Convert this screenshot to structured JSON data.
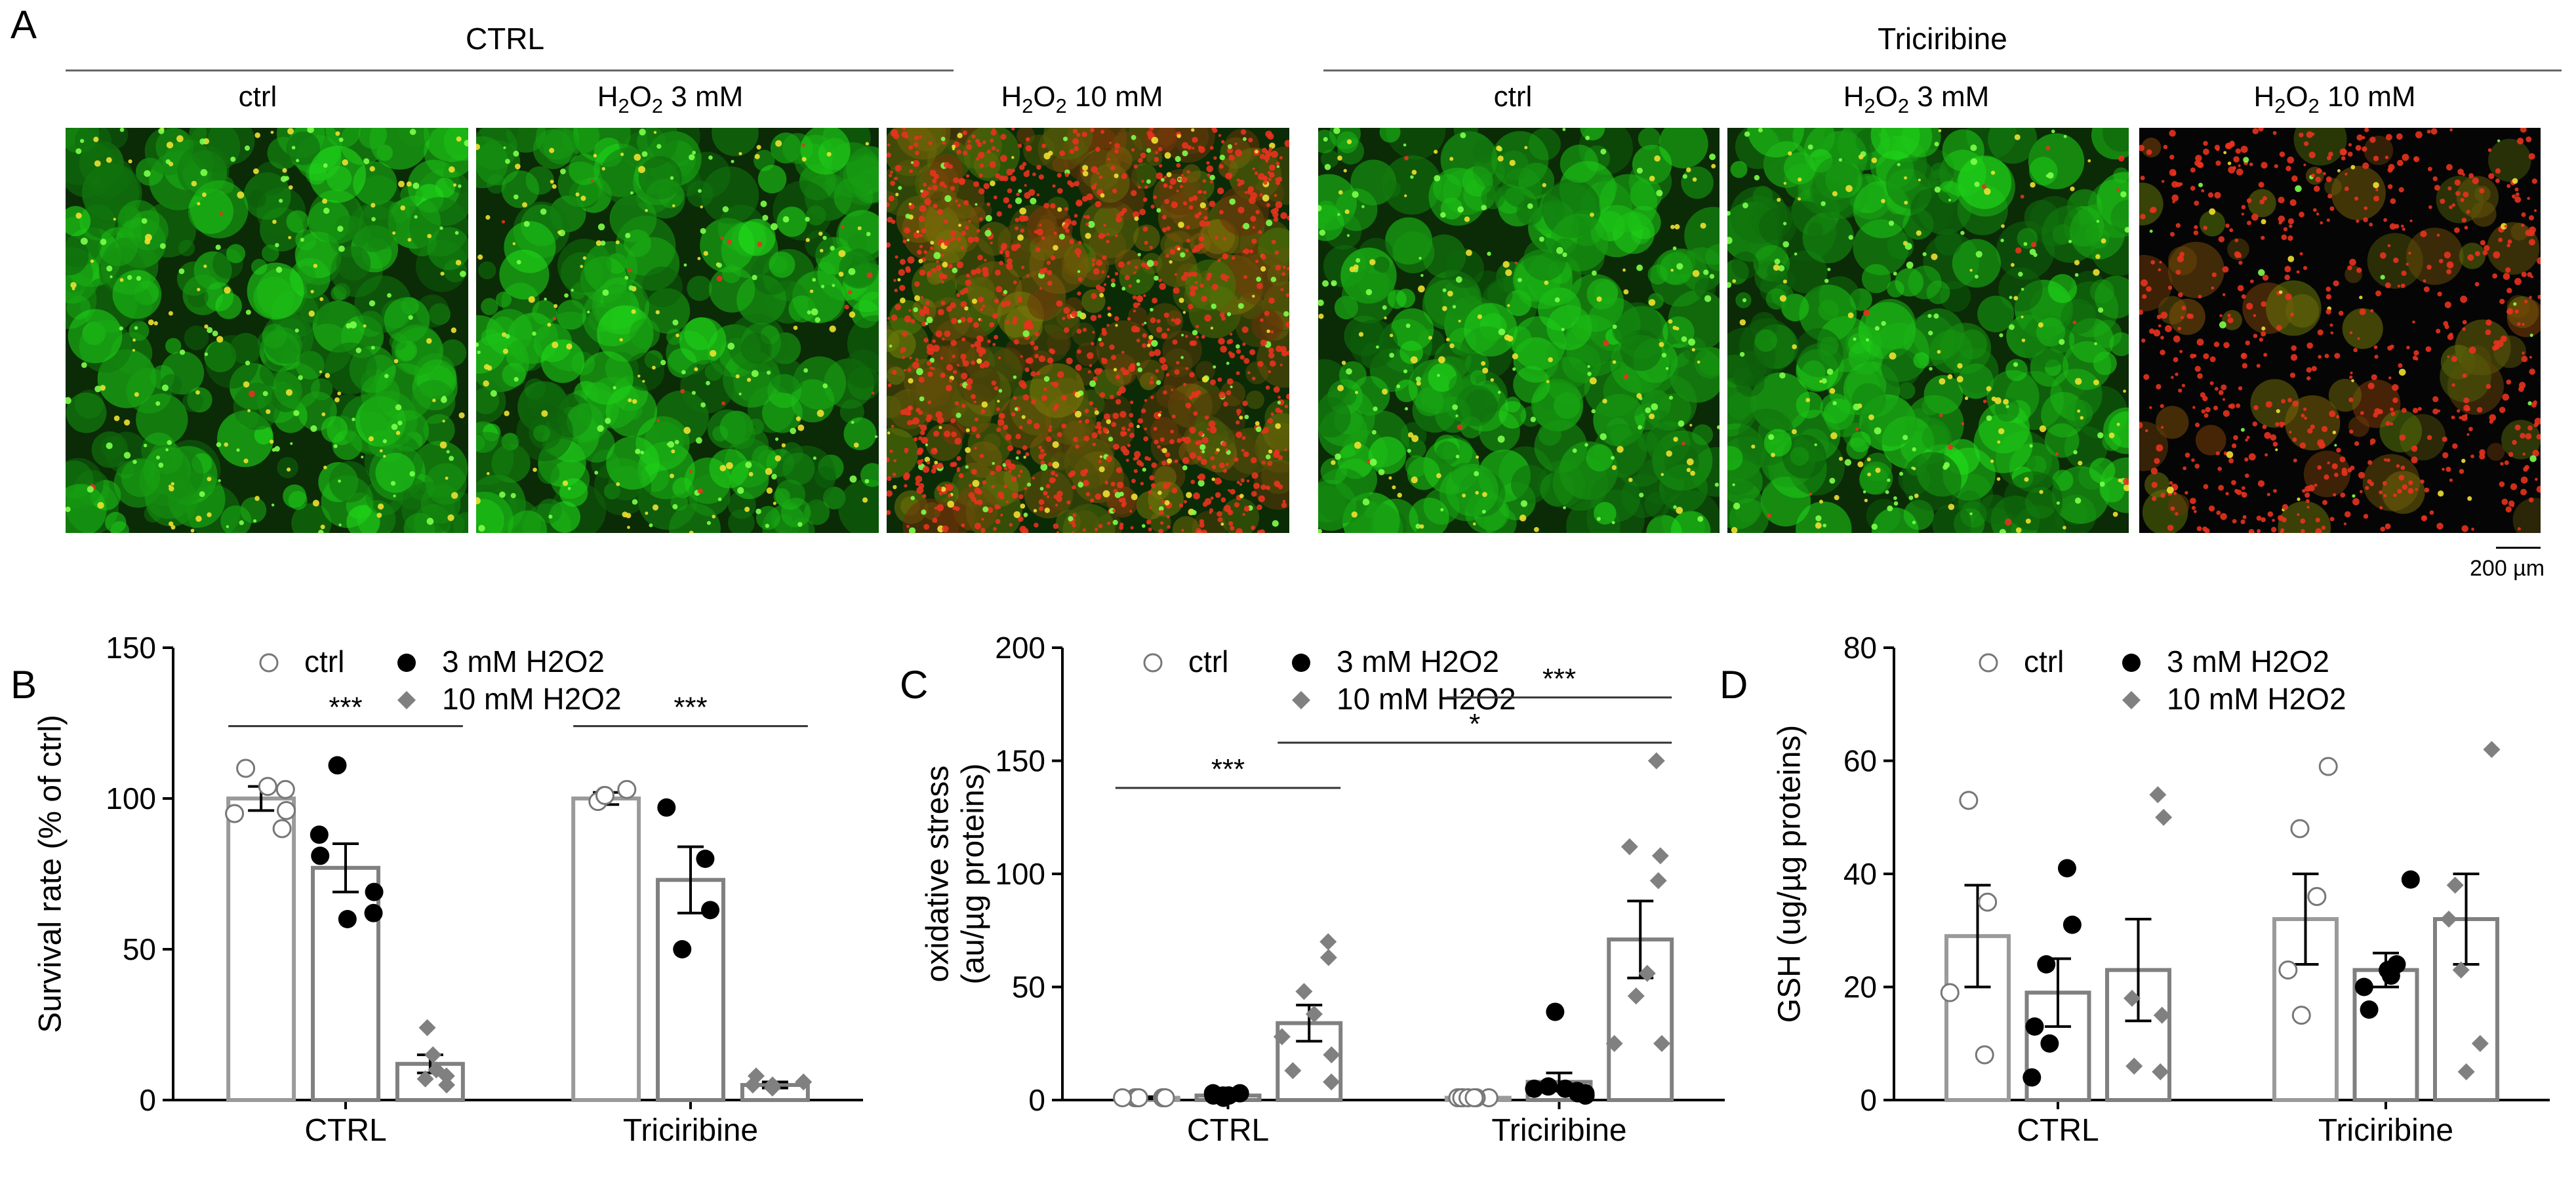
{
  "panel_a": {
    "letter": "A",
    "groups": [
      {
        "title": "CTRL",
        "columns": [
          "ctrl",
          "H2O2 3 mM",
          "H2O2 10 mM"
        ]
      },
      {
        "title": "Triciribine",
        "columns": [
          "ctrl",
          "H2O2 3 mM",
          "H2O2 10 mM"
        ]
      }
    ],
    "scale_bar": "200 µm",
    "image_descriptions": [
      {
        "label": "ctrl",
        "red_fraction": 0.03
      },
      {
        "label": "H2O2 3 mM",
        "red_fraction": 0.1
      },
      {
        "label": "H2O2 10 mM",
        "red_fraction": 0.85
      },
      {
        "label": "ctrl",
        "red_fraction": 0.03
      },
      {
        "label": "H2O2 3 mM",
        "red_fraction": 0.08
      },
      {
        "label": "H2O2 10 mM",
        "red_fraction": 0.95
      }
    ]
  },
  "colors": {
    "ctrl": "#ffffff",
    "h2o2_3mM": "#000000",
    "h2o2_10mM": "#808080",
    "bar_edge": "#000000",
    "bar_edge_grey": "#808080",
    "live_stain": "#2fbf2f",
    "dead_stain": "#e8321e"
  },
  "chart_data": [
    {
      "letter": "B",
      "type": "bar",
      "ylabel": "Survival rate (% of ctrl)",
      "xlabel": "",
      "ylim": [
        0,
        150
      ],
      "yticks": [
        0,
        50,
        100,
        150
      ],
      "categories": [
        "CTRL",
        "Triciribine"
      ],
      "legend": [
        "ctrl",
        "3 mM H2O2",
        "10 mM H2O2"
      ],
      "series": [
        {
          "name": "ctrl",
          "values": [
            100,
            100
          ],
          "sem": [
            4,
            2
          ],
          "points": [
            [
              110,
              103,
              104,
              96,
              95,
              90
            ],
            [
              101,
              103,
              99,
              101
            ]
          ]
        },
        {
          "name": "3 mM H2O2",
          "values": [
            77,
            73
          ],
          "sem": [
            8,
            11
          ],
          "points": [
            [
              111,
              88,
              81,
              69,
              62,
              60
            ],
            [
              97,
              80,
              63,
              50
            ]
          ]
        },
        {
          "name": "10 mM H2O2",
          "values": [
            12,
            5
          ],
          "sem": [
            3,
            1
          ],
          "points": [
            [
              24,
              15,
              10,
              8,
              5,
              7
            ],
            [
              8,
              6,
              5,
              4,
              5
            ]
          ]
        }
      ],
      "annotations": [
        {
          "text": "***",
          "from": [
            "CTRL",
            "ctrl"
          ],
          "to": [
            "CTRL",
            "10 mM H2O2"
          ],
          "y": 124
        },
        {
          "text": "***",
          "from": [
            "Triciribine",
            "ctrl"
          ],
          "to": [
            "Triciribine",
            "10 mM H2O2"
          ],
          "y": 124
        }
      ]
    },
    {
      "letter": "C",
      "type": "bar",
      "ylabel": "oxidative stress\n(au/µg proteins)",
      "xlabel": "",
      "ylim": [
        0,
        200
      ],
      "yticks": [
        0,
        50,
        100,
        150,
        200
      ],
      "categories": [
        "CTRL",
        "Triciribine"
      ],
      "legend": [
        "ctrl",
        "3 mM H2O2",
        "10 mM H2O2"
      ],
      "series": [
        {
          "name": "ctrl",
          "values": [
            1,
            1
          ],
          "sem": [
            0.5,
            0.5
          ],
          "points": [
            [
              1,
              1,
              1,
              1,
              1,
              1,
              1,
              1
            ],
            [
              1,
              1,
              1,
              1,
              1,
              1,
              1,
              1
            ]
          ]
        },
        {
          "name": "3 mM H2O2",
          "values": [
            2,
            8
          ],
          "sem": [
            1,
            4
          ],
          "points": [
            [
              3,
              2,
              2,
              2,
              1,
              3,
              2
            ],
            [
              39,
              6,
              5,
              3,
              2,
              4,
              5,
              3
            ]
          ]
        },
        {
          "name": "10 mM H2O2",
          "values": [
            34,
            71
          ],
          "sem": [
            8,
            17
          ],
          "points": [
            [
              70,
              63,
              48,
              38,
              28,
              20,
              13,
              8
            ],
            [
              150,
              112,
              108,
              97,
              56,
              46,
              25,
              25
            ]
          ]
        }
      ],
      "annotations": [
        {
          "text": "***",
          "from": [
            "CTRL",
            "ctrl"
          ],
          "to": [
            "CTRL",
            "10 mM H2O2"
          ],
          "y": 138
        },
        {
          "text": "*",
          "from": [
            "CTRL",
            "10 mM H2O2"
          ],
          "to": [
            "Triciribine",
            "10 mM H2O2"
          ],
          "y": 158
        },
        {
          "text": "***",
          "from": [
            "Triciribine",
            "ctrl"
          ],
          "to": [
            "Triciribine",
            "10 mM H2O2"
          ],
          "y": 178
        }
      ]
    },
    {
      "letter": "D",
      "type": "bar",
      "ylabel": "GSH (ug/µg proteins)",
      "xlabel": "",
      "ylim": [
        0,
        80
      ],
      "yticks": [
        0,
        20,
        40,
        60,
        80
      ],
      "categories": [
        "CTRL",
        "Triciribine"
      ],
      "legend": [
        "ctrl",
        "3 mM H2O2",
        "10 mM H2O2"
      ],
      "series": [
        {
          "name": "ctrl",
          "values": [
            29,
            32
          ],
          "sem": [
            9,
            8
          ],
          "points": [
            [
              53,
              35,
              19,
              8
            ],
            [
              59,
              48,
              36,
              23,
              15
            ]
          ]
        },
        {
          "name": "3 mM H2O2",
          "values": [
            19,
            23
          ],
          "sem": [
            6,
            3
          ],
          "points": [
            [
              41,
              31,
              24,
              13,
              10,
              4
            ],
            [
              39,
              24,
              23,
              22,
              20,
              16
            ]
          ]
        },
        {
          "name": "10 mM H2O2",
          "values": [
            23,
            32
          ],
          "sem": [
            9,
            8
          ],
          "points": [
            [
              54,
              50,
              18,
              15,
              6,
              5
            ],
            [
              62,
              38,
              32,
              23,
              10,
              5
            ]
          ]
        }
      ],
      "annotations": []
    }
  ]
}
